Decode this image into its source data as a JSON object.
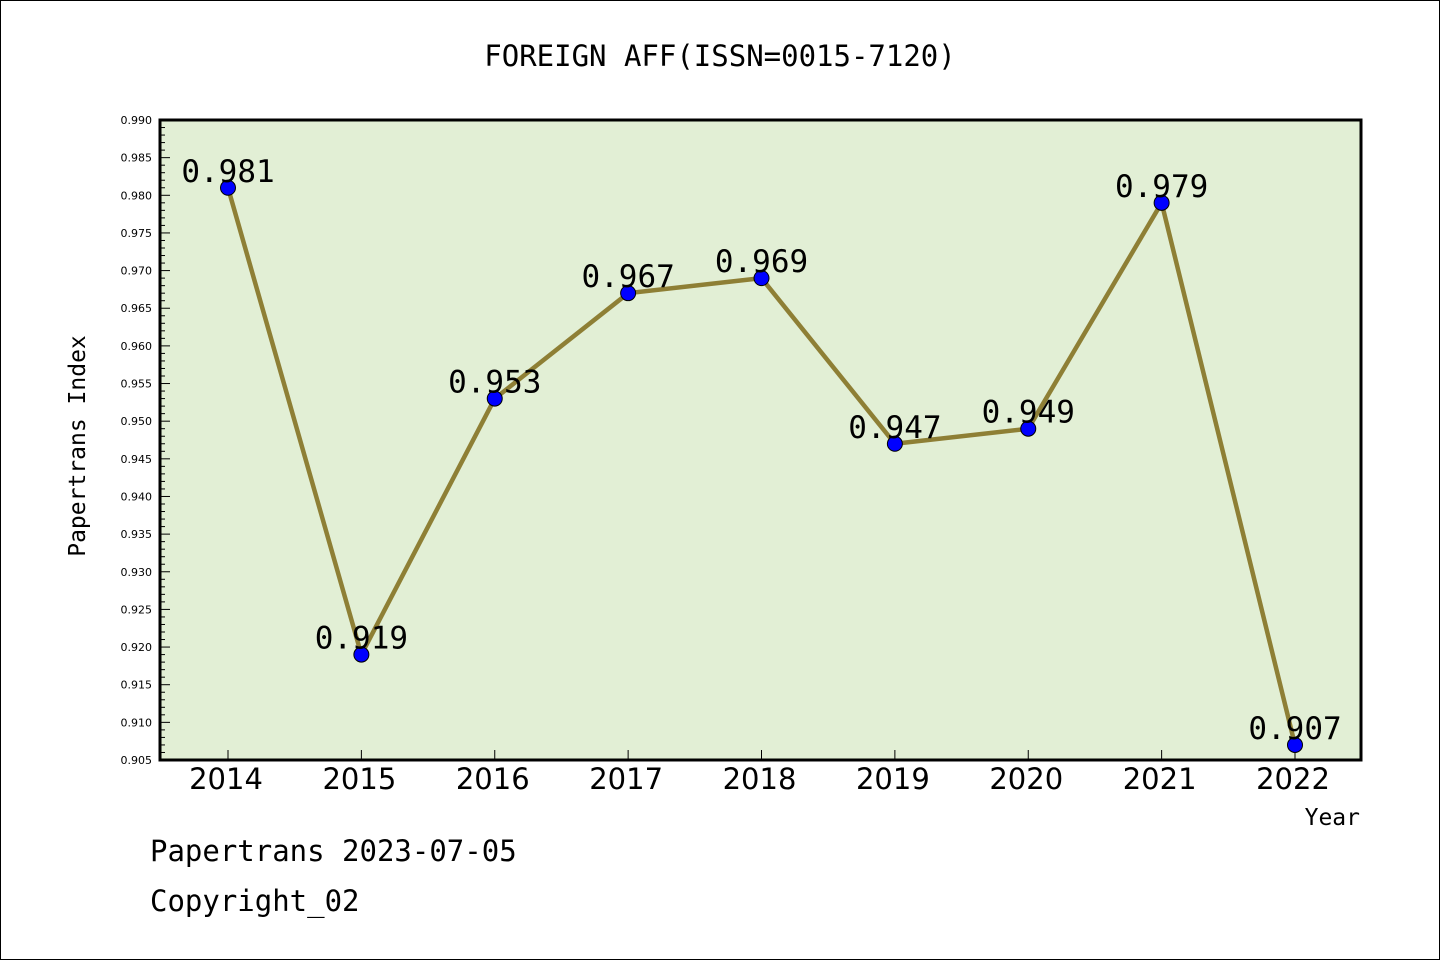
{
  "chart_data": {
    "type": "line",
    "title": "FOREIGN AFF(ISSN=0015-7120)",
    "xlabel": "Year",
    "ylabel": "Papertrans Index",
    "categories": [
      "2014",
      "2015",
      "2016",
      "2017",
      "2018",
      "2019",
      "2020",
      "2021",
      "2022"
    ],
    "series": [
      {
        "values": [
          0.981,
          0.919,
          0.953,
          0.967,
          0.969,
          0.947,
          0.949,
          0.979,
          0.907
        ],
        "labels": [
          "0.981",
          "0.919",
          "0.953",
          "0.967",
          "0.969",
          "0.947",
          "0.949",
          "0.979",
          "0.907"
        ]
      }
    ],
    "ylim": [
      0.905,
      0.99
    ],
    "yticks": [
      "0.905",
      "0.910",
      "0.915",
      "0.920",
      "0.925",
      "0.930",
      "0.935",
      "0.940",
      "0.945",
      "0.950",
      "0.955",
      "0.960",
      "0.965",
      "0.970",
      "0.975",
      "0.980",
      "0.985",
      "0.990"
    ],
    "grid": false,
    "colors": {
      "plot_background": "#e2efd5",
      "line": "#8e7f35",
      "marker": "#0000ff"
    }
  },
  "footer": {
    "line1": "Papertrans 2023-07-05",
    "line2": "Copyright_02"
  }
}
